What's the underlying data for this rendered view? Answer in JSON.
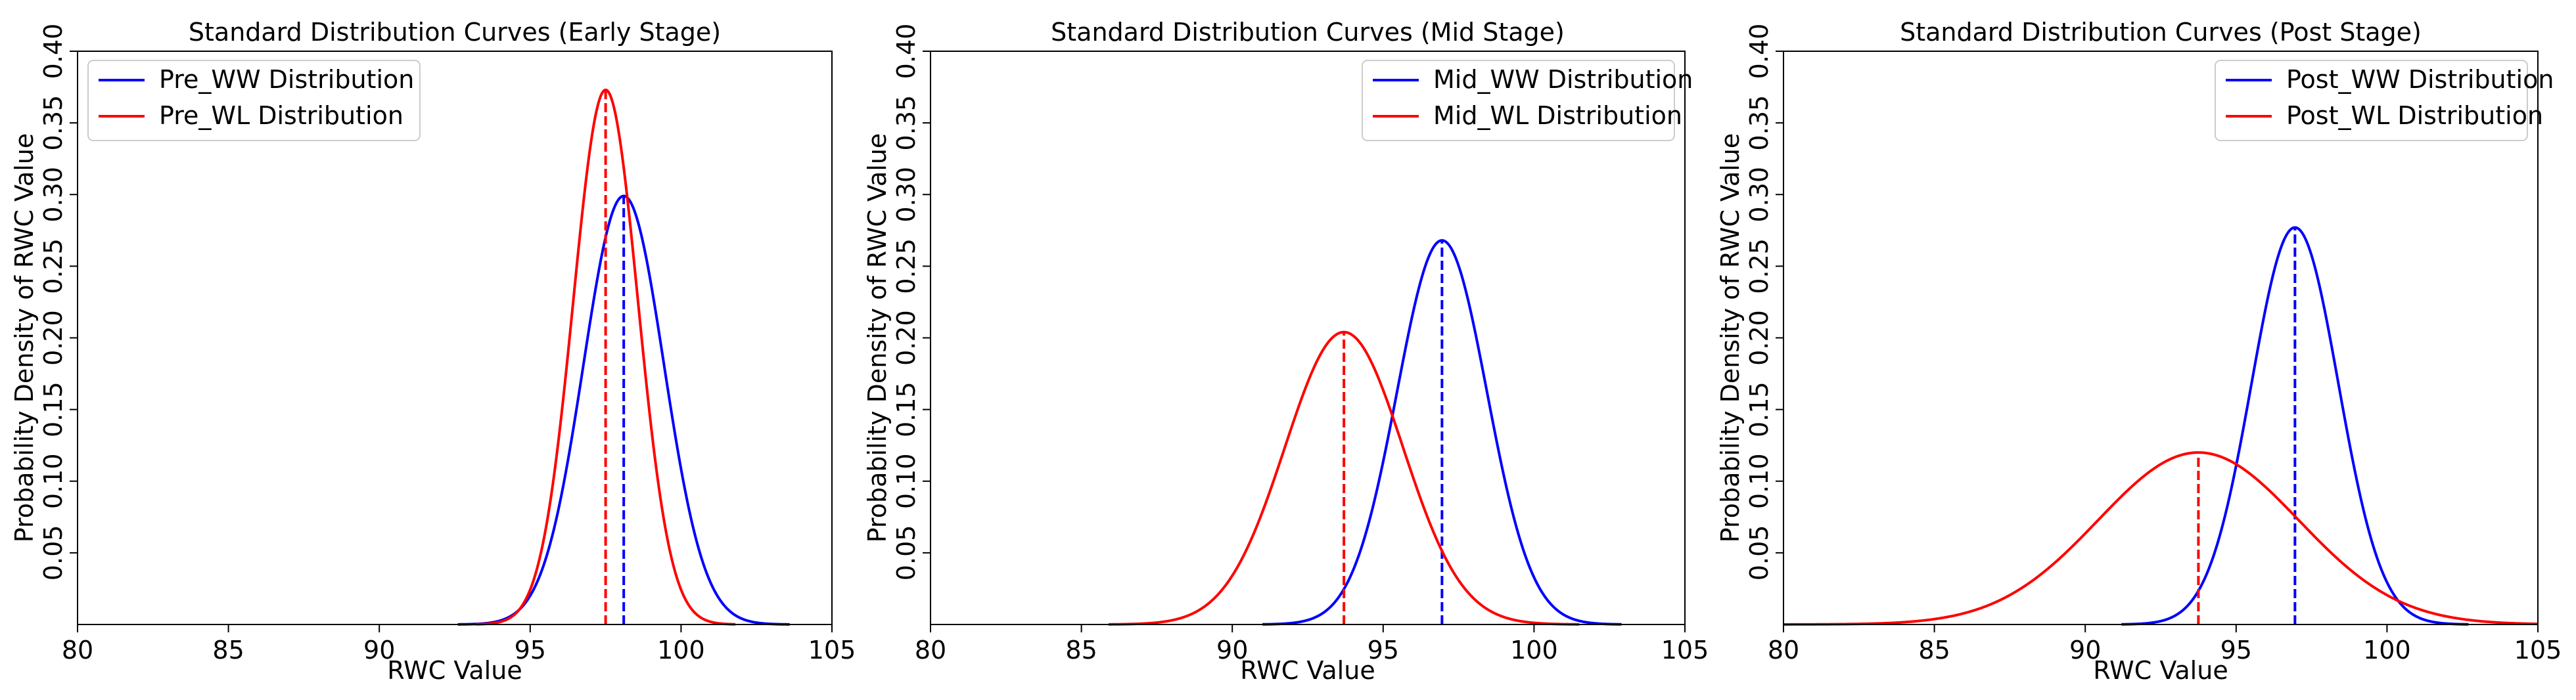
{
  "chart_data": [
    {
      "type": "line",
      "title": "Standard Distribution Curves (Early Stage)",
      "xlabel": "RWC Value",
      "ylabel": "Probability Density of RWC Value",
      "xlim": [
        80,
        105
      ],
      "ylim": [
        0,
        0.4
      ],
      "xticks": [
        "80",
        "85",
        "90",
        "95",
        "100",
        "105"
      ],
      "yticks": [
        "0.05",
        "0.10",
        "0.15",
        "0.20",
        "0.25",
        "0.30",
        "0.35",
        "0.40"
      ],
      "legend_position": "upper-left",
      "series": [
        {
          "name": "Pre_WW Distribution",
          "color": "#0000ff",
          "mean": 98.1,
          "peak": 0.299,
          "x_range": [
            92.6,
            103.6
          ]
        },
        {
          "name": "Pre_WL Distribution",
          "color": "#ff0000",
          "mean": 97.5,
          "peak": 0.373,
          "x_range": [
            93.2,
            101.8
          ]
        }
      ]
    },
    {
      "type": "line",
      "title": "Standard Distribution Curves (Mid Stage)",
      "xlabel": "RWC Value",
      "ylabel": "Probability Density of RWC Value",
      "xlim": [
        80,
        105
      ],
      "ylim": [
        0,
        0.4
      ],
      "xticks": [
        "80",
        "85",
        "90",
        "95",
        "100",
        "105"
      ],
      "yticks": [
        "0.05",
        "0.10",
        "0.15",
        "0.20",
        "0.25",
        "0.30",
        "0.35",
        "0.40"
      ],
      "legend_position": "upper-right",
      "series": [
        {
          "name": "Mid_WW Distribution",
          "color": "#0000ff",
          "mean": 96.95,
          "peak": 0.268,
          "x_range": [
            91.0,
            102.9
          ]
        },
        {
          "name": "Mid_WL Distribution",
          "color": "#ff0000",
          "mean": 93.7,
          "peak": 0.204,
          "x_range": [
            85.9,
            101.5
          ]
        }
      ]
    },
    {
      "type": "line",
      "title": "Standard Distribution Curves (Post Stage)",
      "xlabel": "RWC Value",
      "ylabel": "Probability Density of RWC Value",
      "xlim": [
        80,
        105
      ],
      "ylim": [
        0,
        0.4
      ],
      "xticks": [
        "80",
        "85",
        "90",
        "95",
        "100",
        "105"
      ],
      "yticks": [
        "0.05",
        "0.10",
        "0.15",
        "0.20",
        "0.25",
        "0.30",
        "0.35",
        "0.40"
      ],
      "legend_position": "upper-right",
      "series": [
        {
          "name": "Post_WW Distribution",
          "color": "#0000ff",
          "mean": 96.95,
          "peak": 0.277,
          "x_range": [
            91.2,
            102.7
          ]
        },
        {
          "name": "Post_WL Distribution",
          "color": "#ff0000",
          "mean": 93.75,
          "peak": 0.12,
          "x_range": [
            80.0,
            105.0
          ]
        }
      ]
    }
  ]
}
